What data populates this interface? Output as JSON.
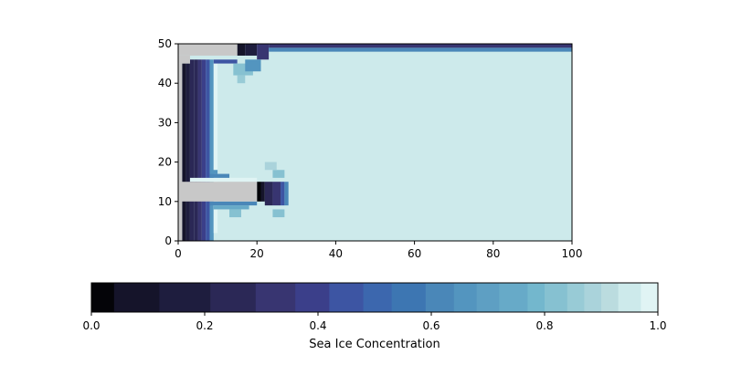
{
  "chart_data": [
    {
      "type": "heatmap",
      "title": "",
      "xlabel": "",
      "ylabel": "",
      "xlim": [
        0,
        100
      ],
      "ylim": [
        0,
        50
      ],
      "xticks": [
        0,
        20,
        40,
        60,
        80,
        100
      ],
      "yticks": [
        0,
        10,
        20,
        30,
        40,
        50
      ],
      "xtick_labels": [
        "0",
        "20",
        "40",
        "60",
        "80",
        "100"
      ],
      "ytick_labels": [
        "0",
        "10",
        "20",
        "30",
        "40",
        "50"
      ],
      "grid": false,
      "land_mask_color": "#c8c8c8",
      "interior_value": 0.94,
      "land": [
        {
          "x0": 0,
          "x1": 20,
          "y0": 10,
          "y1": 15
        },
        {
          "x0": 0,
          "x1": 15,
          "y0": 47,
          "y1": 50
        },
        {
          "x0": 0,
          "x1": 3,
          "y0": 45,
          "y1": 47
        },
        {
          "x0": 0,
          "x1": 1,
          "y0": 0,
          "y1": 45
        }
      ],
      "ice_features": [
        {
          "x0": 1,
          "x1": 2,
          "y0": 0,
          "y1": 45,
          "value": 0.06
        },
        {
          "x0": 2,
          "x1": 3,
          "y0": 0,
          "y1": 45,
          "value": 0.14
        },
        {
          "x0": 3,
          "x1": 4,
          "y0": 0,
          "y1": 46,
          "value": 0.22
        },
        {
          "x0": 4,
          "x1": 5,
          "y0": 0,
          "y1": 46,
          "value": 0.28
        },
        {
          "x0": 5,
          "x1": 6,
          "y0": 0,
          "y1": 46,
          "value": 0.32
        },
        {
          "x0": 6,
          "x1": 7,
          "y0": 0,
          "y1": 46,
          "value": 0.36
        },
        {
          "x0": 7,
          "x1": 8,
          "y0": 0,
          "y1": 46,
          "value": 0.42
        },
        {
          "x0": 8,
          "x1": 9,
          "y0": 0,
          "y1": 46,
          "value": 0.66
        },
        {
          "x0": 9,
          "x1": 10,
          "y0": 2,
          "y1": 46,
          "value": 0.99
        },
        {
          "x0": 15,
          "x1": 17,
          "y0": 47,
          "y1": 50,
          "value": 0.06
        },
        {
          "x0": 17,
          "x1": 20,
          "y0": 47,
          "y1": 50,
          "value": 0.2
        },
        {
          "x0": 20,
          "x1": 23,
          "y0": 46,
          "y1": 50,
          "value": 0.3
        },
        {
          "x0": 23,
          "x1": 100,
          "y0": 48,
          "y1": 49,
          "value": 0.62
        },
        {
          "x0": 23,
          "x1": 100,
          "y0": 49,
          "y1": 50,
          "value": 0.34
        },
        {
          "x0": 9,
          "x1": 15,
          "y0": 45,
          "y1": 46,
          "value": 0.42
        },
        {
          "x0": 20,
          "x1": 21,
          "y0": 10,
          "y1": 15,
          "value": 0.03
        },
        {
          "x0": 21,
          "x1": 22,
          "y0": 10,
          "y1": 15,
          "value": 0.1
        },
        {
          "x0": 22,
          "x1": 24,
          "y0": 9,
          "y1": 15,
          "value": 0.25
        },
        {
          "x0": 24,
          "x1": 26,
          "y0": 9,
          "y1": 15,
          "value": 0.32
        },
        {
          "x0": 26,
          "x1": 27,
          "y0": 9,
          "y1": 15,
          "value": 0.44
        },
        {
          "x0": 27,
          "x1": 28,
          "y0": 9,
          "y1": 15,
          "value": 0.6
        },
        {
          "x0": 3,
          "x1": 20,
          "y0": 15,
          "y1": 16,
          "value": 0.99
        },
        {
          "x0": 8,
          "x1": 20,
          "y0": 9,
          "y1": 10,
          "value": 0.6
        },
        {
          "x0": 9,
          "x1": 18,
          "y0": 8,
          "y1": 9,
          "value": 0.75
        },
        {
          "x0": 8,
          "x1": 13,
          "y0": 16,
          "y1": 17,
          "value": 0.6
        },
        {
          "x0": 8,
          "x1": 10,
          "y0": 17,
          "y1": 18,
          "value": 0.66
        },
        {
          "x0": 24,
          "x1": 27,
          "y0": 16,
          "y1": 18,
          "value": 0.82
        },
        {
          "x0": 22,
          "x1": 25,
          "y0": 18,
          "y1": 20,
          "value": 0.88
        },
        {
          "x0": 13,
          "x1": 16,
          "y0": 6,
          "y1": 8,
          "value": 0.82
        },
        {
          "x0": 24,
          "x1": 27,
          "y0": 6,
          "y1": 8,
          "value": 0.8
        },
        {
          "x0": 14,
          "x1": 19,
          "y0": 42,
          "y1": 45,
          "value": 0.82
        },
        {
          "x0": 17,
          "x1": 21,
          "y0": 43,
          "y1": 46,
          "value": 0.66
        },
        {
          "x0": 15,
          "x1": 17,
          "y0": 40,
          "y1": 42,
          "value": 0.84
        }
      ]
    },
    {
      "type": "colorbar",
      "label": "Sea Ice Concentration",
      "orientation": "horizontal",
      "range": [
        0,
        1
      ],
      "ticks": [
        0.0,
        0.2,
        0.4,
        0.6,
        0.8,
        1.0
      ],
      "tick_labels": [
        "0.0",
        "0.2",
        "0.4",
        "0.6",
        "0.8",
        "1.0"
      ],
      "levels": [
        0.0,
        0.04,
        0.12,
        0.21,
        0.29,
        0.36,
        0.42,
        0.48,
        0.53,
        0.59,
        0.64,
        0.68,
        0.72,
        0.77,
        0.8,
        0.84,
        0.87,
        0.9,
        0.93,
        0.97,
        1.0
      ],
      "colors": [
        "#040408",
        "#15142a",
        "#1e1d3e",
        "#2b2856",
        "#383571",
        "#3b3f8a",
        "#3d55a3",
        "#3c67ae",
        "#3d76b2",
        "#4a87b8",
        "#5395bf",
        "#5e9fc3",
        "#67aac8",
        "#73b7cd",
        "#86c1d1",
        "#98cbd6",
        "#aad3db",
        "#bbdcdf",
        "#cdeaeb",
        "#e0f4f4",
        "#ffffff"
      ]
    }
  ]
}
